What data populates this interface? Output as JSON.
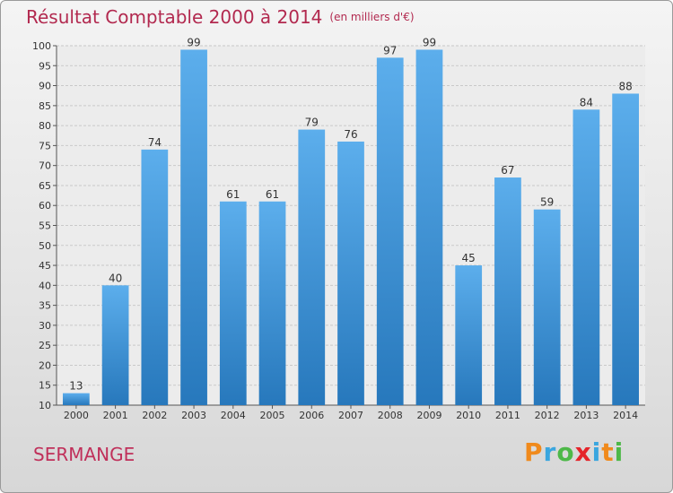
{
  "chart_data": {
    "type": "bar",
    "title": "Résultat Comptable 2000 à 2014",
    "subtitle": "(en milliers d'€)",
    "categories": [
      "2000",
      "2001",
      "2002",
      "2003",
      "2004",
      "2005",
      "2006",
      "2007",
      "2008",
      "2009",
      "2010",
      "2011",
      "2012",
      "2013",
      "2014"
    ],
    "values": [
      13,
      40,
      74,
      99,
      61,
      61,
      79,
      76,
      97,
      99,
      45,
      67,
      59,
      84,
      88
    ],
    "data_labels": [
      "13",
      "40",
      "74",
      "99",
      "61",
      "61",
      "79",
      "76",
      "97",
      "99",
      "45",
      "67",
      "59",
      "84",
      "88"
    ],
    "ylim": [
      10,
      100
    ],
    "yticks": [
      "10",
      "15",
      "20",
      "25",
      "30",
      "35",
      "40",
      "45",
      "50",
      "55",
      "60",
      "65",
      "70",
      "75",
      "80",
      "85",
      "90",
      "95",
      "100"
    ],
    "grid": true,
    "bar_color": "#3f93d8"
  },
  "footer": {
    "commune": "SERMANGE",
    "logo_letters": [
      "P",
      "r",
      "o",
      "x",
      "i",
      "t",
      "i"
    ],
    "logo_colors": [
      "#f08a1c",
      "#3aa6df",
      "#4db848",
      "#e5242a",
      "#3aa6df",
      "#f08a1c",
      "#4db848"
    ]
  }
}
